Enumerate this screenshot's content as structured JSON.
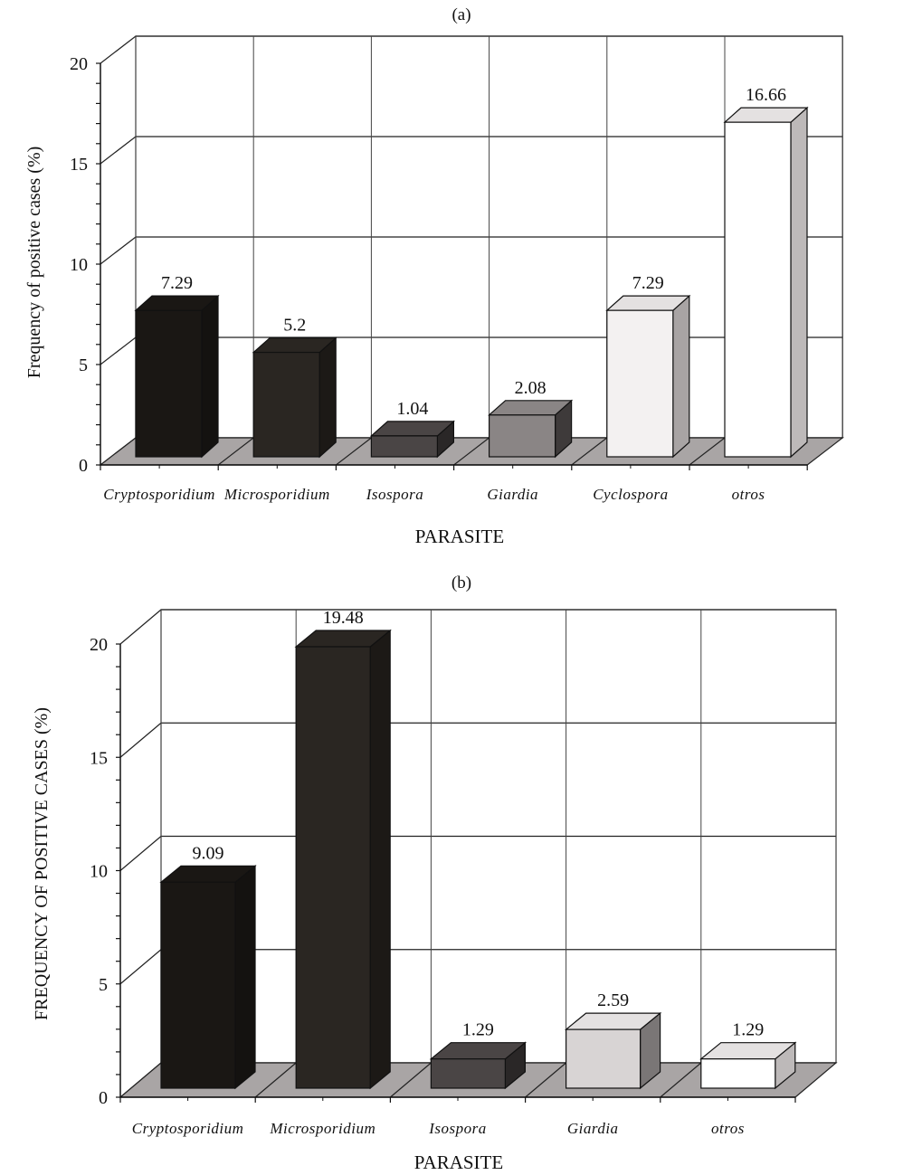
{
  "chart_data": [
    {
      "type": "bar",
      "title": "(a)",
      "xlabel": "PARASITE",
      "ylabel": "Frequency of positive cases (%)",
      "categories": [
        "Cryptosporidium",
        "Microsporidium",
        "Isospora",
        "Giardia",
        "Cyclospora",
        "otros"
      ],
      "values": [
        7.29,
        5.2,
        1.04,
        2.08,
        7.29,
        16.66
      ],
      "data_labels": [
        "7.29",
        "5.2",
        "1.04",
        "2.08",
        "7.29",
        "16.66"
      ],
      "colors": [
        "#1a1714",
        "#2a2622",
        "#4a4545",
        "#8a8585",
        "#f3f1f1",
        "#ffffff"
      ],
      "side_colors": [
        "#141210",
        "#1c1916",
        "#2a2727",
        "#3e3a3a",
        "#a8a4a4",
        "#bdb9b9"
      ],
      "ylim": [
        0,
        20
      ],
      "yticks": [
        "0",
        "5",
        "10",
        "15",
        "20"
      ],
      "grid": true,
      "style": "3d"
    },
    {
      "type": "bar",
      "title": "(b)",
      "xlabel": "PARASITE",
      "ylabel": "FREQUENCY OF POSITIVE CASES (%)",
      "categories": [
        "Cryptosporidium",
        "Microsporidium",
        "Isospora",
        "Giardia",
        "otros"
      ],
      "values": [
        9.09,
        19.48,
        1.29,
        2.59,
        1.29
      ],
      "data_labels": [
        "9.09",
        "19.48",
        "1.29",
        "2.59",
        "1.29"
      ],
      "colors": [
        "#1a1714",
        "#2a2622",
        "#4a4545",
        "#d8d4d4",
        "#ffffff"
      ],
      "side_colors": [
        "#141210",
        "#1c1916",
        "#2a2727",
        "#7a7676",
        "#bdb9b9"
      ],
      "ylim": [
        0,
        20
      ],
      "yticks": [
        "0",
        "5",
        "10",
        "15",
        "20"
      ],
      "grid": true,
      "style": "3d"
    }
  ]
}
